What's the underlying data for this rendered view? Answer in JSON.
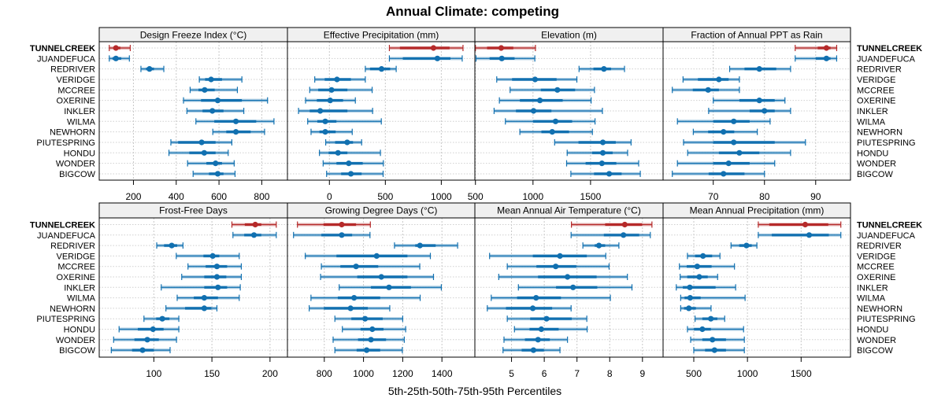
{
  "chart_data": {
    "type": "dotplot-percentile-intervals",
    "title": "Annual Climate: competing",
    "xlabel": "5th-25th-50th-75th-95th Percentiles",
    "percentiles": [
      "5th",
      "25th",
      "50th",
      "75th",
      "95th"
    ],
    "highlight_color": "#b52a2a",
    "series_color": "#1170b0",
    "highlight_site": "TUNNELCREEK",
    "sites": [
      "TUNNELCREEK",
      "JUANDEFUCA",
      "REDRIVER",
      "VERIDGE",
      "MCCREE",
      "OXERINE",
      "INKLER",
      "WILMA",
      "NEWHORN",
      "PIUTESPRING",
      "HONDU",
      "WONDER",
      "BIGCOW"
    ],
    "grid": true,
    "panels": [
      {
        "title": "Design Freeze Index (°C)",
        "xlim": [
          40,
          920
        ],
        "ticks": [
          200,
          400,
          600,
          800
        ],
        "values": [
          [
            87,
            106,
            118,
            139,
            185
          ],
          [
            87,
            102,
            118,
            143,
            181
          ],
          [
            235,
            259,
            275,
            296,
            342
          ],
          [
            508,
            535,
            563,
            614,
            707
          ],
          [
            465,
            504,
            533,
            580,
            686
          ],
          [
            434,
            516,
            594,
            707,
            827
          ],
          [
            450,
            523,
            569,
            621,
            716
          ],
          [
            492,
            578,
            679,
            774,
            857
          ],
          [
            571,
            634,
            679,
            748,
            813
          ],
          [
            375,
            409,
            519,
            584,
            660
          ],
          [
            366,
            461,
            531,
            584,
            643
          ],
          [
            453,
            541,
            584,
            614,
            671
          ],
          [
            479,
            553,
            594,
            621,
            675
          ]
        ]
      },
      {
        "title": "Effective Precipitation (mm)",
        "xlim": [
          -375,
          1300
        ],
        "ticks": [
          0,
          500,
          1000
        ],
        "values": [
          [
            536,
            630,
            930,
            1074,
            1194
          ],
          [
            536,
            656,
            965,
            1082,
            1187
          ],
          [
            321,
            363,
            466,
            543,
            597
          ],
          [
            -131,
            -42,
            68,
            192,
            321
          ],
          [
            -176,
            -100,
            19,
            161,
            382
          ],
          [
            -213,
            -112,
            7,
            122,
            232
          ],
          [
            -276,
            -176,
            -82,
            161,
            386
          ],
          [
            -194,
            -108,
            -37,
            63,
            464
          ],
          [
            -164,
            -89,
            -37,
            56,
            204
          ],
          [
            -33,
            51,
            159,
            211,
            288
          ],
          [
            -89,
            -7,
            77,
            161,
            456
          ],
          [
            -56,
            63,
            173,
            298,
            482
          ],
          [
            -25,
            105,
            192,
            288,
            480
          ]
        ]
      },
      {
        "title": "Elevation (m)",
        "xlim": [
          495,
          2130
        ],
        "ticks": [
          500,
          1000,
          1500
        ],
        "values": [
          [
            500,
            601,
            724,
            829,
            1021
          ],
          [
            505,
            623,
            729,
            840,
            1016
          ],
          [
            1400,
            1525,
            1616,
            1678,
            1795
          ],
          [
            685,
            818,
            1018,
            1205,
            1381
          ],
          [
            801,
            1068,
            1212,
            1366,
            1534
          ],
          [
            708,
            886,
            1060,
            1258,
            1505
          ],
          [
            662,
            852,
            1005,
            1160,
            1603
          ],
          [
            760,
            1000,
            1196,
            1340,
            1539
          ],
          [
            886,
            1073,
            1167,
            1313,
            1516
          ],
          [
            1188,
            1395,
            1607,
            1719,
            1852
          ],
          [
            1297,
            1514,
            1607,
            1692,
            1822
          ],
          [
            1292,
            1457,
            1599,
            1724,
            1918
          ],
          [
            1329,
            1530,
            1662,
            1770,
            1932
          ]
        ]
      },
      {
        "title": "Fraction of Annual PPT as Rain",
        "xlim": [
          60.2,
          96.8
        ],
        "ticks": [
          70,
          80,
          90
        ],
        "values": [
          [
            86.0,
            90.4,
            92.1,
            92.9,
            94.1
          ],
          [
            86.0,
            90.0,
            92.1,
            92.9,
            94.1
          ],
          [
            73.2,
            76.1,
            79.0,
            82.3,
            85.1
          ],
          [
            64.1,
            67.0,
            71.1,
            73.0,
            75.1
          ],
          [
            62.0,
            66.0,
            69.0,
            71.1,
            75.1
          ],
          [
            70.0,
            75.1,
            79.0,
            82.0,
            84.0
          ],
          [
            69.1,
            77.1,
            80.0,
            82.0,
            85.1
          ],
          [
            63.0,
            70.0,
            74.0,
            77.1,
            81.1
          ],
          [
            66.1,
            69.0,
            72.0,
            74.1,
            78.6
          ],
          [
            64.2,
            70.0,
            74.0,
            82.0,
            88.0
          ],
          [
            65.0,
            71.1,
            75.1,
            79.0,
            85.1
          ],
          [
            63.0,
            70.0,
            73.0,
            77.1,
            82.0
          ],
          [
            62.0,
            69.1,
            72.0,
            76.1,
            80.0
          ]
        ]
      },
      {
        "title": "Frost-Free Days",
        "xlim": [
          53,
          215
        ],
        "ticks": [
          100,
          150,
          200
        ],
        "values": [
          [
            167.2,
            178.3,
            187.3,
            192.5,
            205.4
          ],
          [
            168.1,
            177.8,
            186.2,
            192.5,
            205.4
          ],
          [
            102.5,
            108.8,
            115.4,
            120.1,
            125.1
          ],
          [
            119.3,
            142.7,
            150.7,
            156.3,
            173.5
          ],
          [
            129.4,
            144.6,
            154.3,
            163.1,
            175.3
          ],
          [
            124.0,
            143.4,
            154.3,
            162.4,
            175.3
          ],
          [
            106.4,
            143.4,
            155.2,
            163.1,
            174.4
          ],
          [
            120.1,
            134.4,
            143.4,
            155.2,
            173.5
          ],
          [
            110.4,
            126.9,
            143.4,
            149.5,
            154.3
          ],
          [
            91.5,
            102.0,
            107.3,
            113.4,
            121.5
          ],
          [
            70.1,
            86.2,
            99.3,
            108.4,
            121.5
          ],
          [
            65.4,
            83.3,
            94.4,
            104.3,
            119.5
          ],
          [
            63.4,
            81.3,
            90.3,
            100.0,
            114.0
          ]
        ]
      },
      {
        "title": "Growing Degree Days (°C)",
        "xlim": [
          612,
          1568
        ],
        "ticks": [
          800,
          1000,
          1200,
          1400
        ],
        "values": [
          [
            663,
            796,
            889,
            962,
            1035
          ],
          [
            643,
            785,
            889,
            942,
            1033
          ],
          [
            1158,
            1264,
            1288,
            1368,
            1480
          ],
          [
            703,
            862,
            1067,
            1224,
            1341
          ],
          [
            785,
            882,
            962,
            1075,
            1287
          ],
          [
            781,
            968,
            1091,
            1224,
            1357
          ],
          [
            876,
            1038,
            1130,
            1242,
            1397
          ],
          [
            732,
            869,
            952,
            1085,
            1289
          ],
          [
            723,
            798,
            934,
            1022,
            1134
          ],
          [
            854,
            938,
            1008,
            1098,
            1200
          ],
          [
            892,
            985,
            1045,
            1102,
            1215
          ],
          [
            845,
            972,
            1038,
            1115,
            1208
          ],
          [
            854,
            965,
            1016,
            1085,
            1198
          ]
        ]
      },
      {
        "title": "Mean Annual Air Temperature (°C)",
        "xlim": [
          3.88,
          9.63
        ],
        "ticks": [
          5,
          6,
          7,
          8,
          9
        ],
        "values": [
          [
            6.83,
            7.86,
            8.46,
            8.99,
            9.29
          ],
          [
            6.82,
            7.82,
            8.42,
            8.9,
            9.24
          ],
          [
            7.18,
            7.54,
            7.67,
            7.86,
            8.28
          ],
          [
            4.33,
            5.65,
            6.48,
            7.3,
            7.88
          ],
          [
            4.87,
            5.76,
            6.35,
            6.98,
            7.98
          ],
          [
            4.61,
            5.81,
            6.71,
            7.6,
            8.54
          ],
          [
            5.21,
            6.36,
            6.88,
            7.62,
            8.68
          ],
          [
            4.38,
            5.17,
            5.75,
            6.51,
            8.02
          ],
          [
            4.26,
            4.83,
            5.65,
            6.24,
            6.82
          ],
          [
            4.87,
            5.57,
            6.07,
            6.84,
            7.3
          ],
          [
            5.09,
            5.55,
            5.91,
            6.44,
            7.31
          ],
          [
            4.77,
            5.41,
            5.81,
            6.17,
            6.71
          ],
          [
            4.74,
            5.31,
            5.67,
            5.99,
            6.48
          ]
        ]
      },
      {
        "title": "Mean Annual Precipitation (mm)",
        "xlim": [
          214,
          1960
        ],
        "ticks": [
          500,
          1000,
          1500
        ],
        "values": [
          [
            1101,
            1203,
            1538,
            1753,
            1870
          ],
          [
            1101,
            1227,
            1575,
            1758,
            1870
          ],
          [
            847,
            923,
            991,
            1040,
            1088
          ],
          [
            441,
            512,
            586,
            671,
            744
          ],
          [
            366,
            434,
            532,
            666,
            879
          ],
          [
            373,
            439,
            551,
            630,
            722
          ],
          [
            337,
            398,
            463,
            703,
            890
          ],
          [
            378,
            414,
            466,
            564,
            978
          ],
          [
            378,
            410,
            454,
            520,
            661
          ],
          [
            512,
            580,
            659,
            720,
            788
          ],
          [
            441,
            502,
            580,
            659,
            964
          ],
          [
            471,
            580,
            674,
            800,
            971
          ],
          [
            500,
            605,
            693,
            800,
            971
          ]
        ]
      }
    ]
  }
}
